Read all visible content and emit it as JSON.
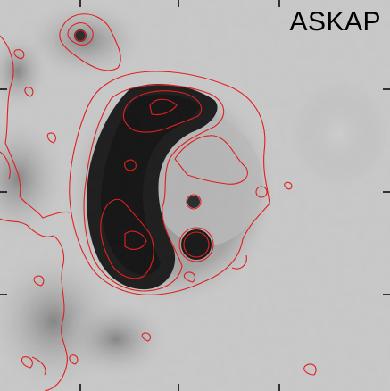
{
  "panel": {
    "label": "ASKAP"
  },
  "colors": {
    "contour": "#e02020",
    "emission_dark": "#000000",
    "emission_background": "#c8c8c8",
    "axis_ticks": "#000000"
  }
}
